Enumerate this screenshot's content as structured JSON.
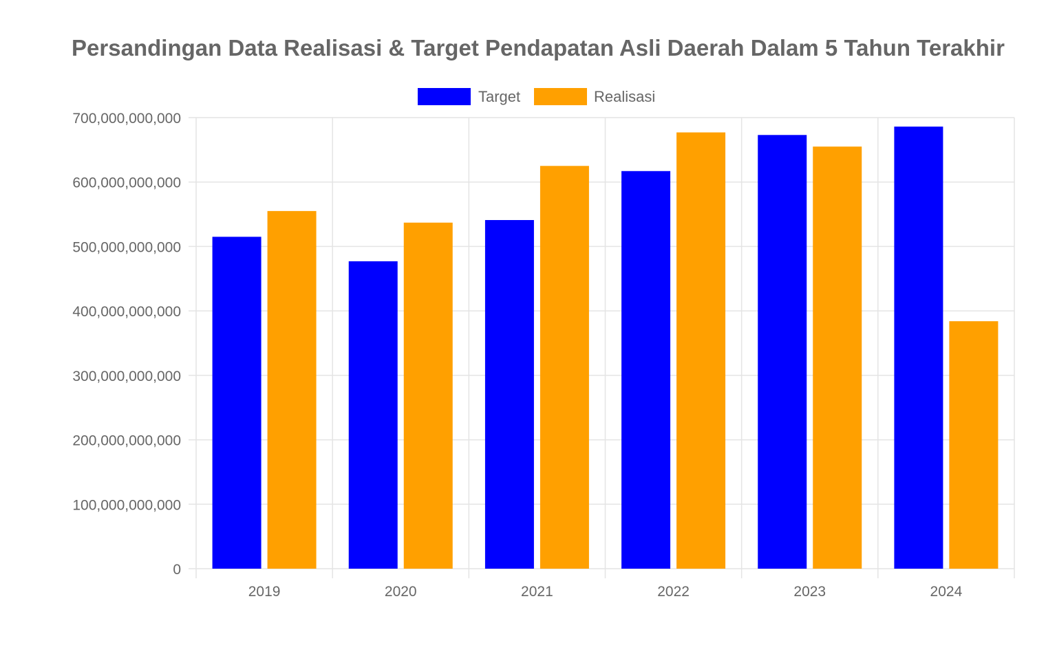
{
  "chart_data": {
    "type": "bar",
    "title": "Persandingan Data Realisasi & Target Pendapatan Asli Daerah Dalam 5 Tahun Terakhir",
    "xlabel": "",
    "ylabel": "",
    "categories": [
      "2019",
      "2020",
      "2021",
      "2022",
      "2023",
      "2024"
    ],
    "ylim": [
      0,
      700000000000
    ],
    "yticks": [
      0,
      100000000000,
      200000000000,
      300000000000,
      400000000000,
      500000000000,
      600000000000,
      700000000000
    ],
    "ytick_labels": [
      "0",
      "100,000,000,000",
      "200,000,000,000",
      "300,000,000,000",
      "400,000,000,000",
      "500,000,000,000",
      "600,000,000,000",
      "700,000,000,000"
    ],
    "grid": true,
    "legend_position": "top",
    "series": [
      {
        "name": "Target",
        "color": "#0000ff",
        "values": [
          515000000000,
          477000000000,
          541000000000,
          617000000000,
          673000000000,
          686000000000
        ]
      },
      {
        "name": "Realisasi",
        "color": "#ffa000",
        "values": [
          555000000000,
          537000000000,
          625000000000,
          677000000000,
          655000000000,
          384000000000
        ]
      }
    ]
  }
}
